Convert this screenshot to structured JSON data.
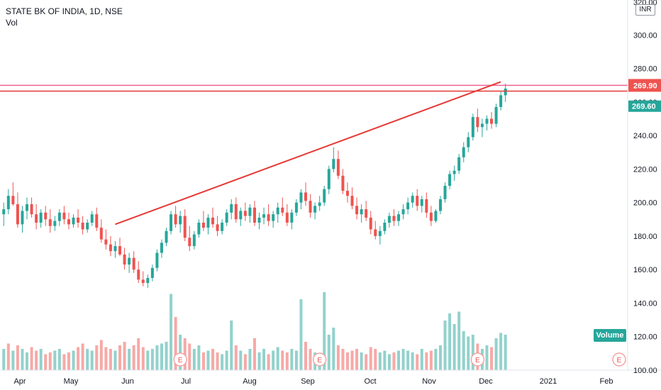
{
  "legend": {
    "title": "STATE BK OF INDIA, 1D, NSE",
    "volume_label": "Vol"
  },
  "currency": "INR",
  "volume_badge": "Volume",
  "top_partial_label": "320.00",
  "earnings_marker": "E",
  "colors": {
    "up": "#26a69a",
    "down": "#ef5350",
    "trendline": "#e53935",
    "level_upper": "#f06292",
    "level_lower": "#e53935"
  },
  "chart_data": {
    "type": "candlestick",
    "title": "STATE BK OF INDIA, 1D, NSE",
    "ylim": [
      100,
      320
    ],
    "y_ticks": [
      100,
      120,
      140,
      160,
      180,
      200,
      220,
      240,
      260,
      280,
      300
    ],
    "x_ticks": [
      "Apr",
      "May",
      "Jun",
      "Jul",
      "Aug",
      "Sep",
      "Oct",
      "Nov",
      "Dec",
      "2021",
      "Feb"
    ],
    "candles": [
      [
        193,
        200,
        186,
        196
      ],
      [
        196,
        208,
        193,
        204
      ],
      [
        204,
        212,
        198,
        199
      ],
      [
        199,
        206,
        185,
        187
      ],
      [
        187,
        198,
        182,
        195
      ],
      [
        195,
        203,
        190,
        199
      ],
      [
        199,
        203,
        191,
        193
      ],
      [
        193,
        199,
        184,
        188
      ],
      [
        188,
        196,
        185,
        194
      ],
      [
        194,
        198,
        186,
        190
      ],
      [
        190,
        196,
        182,
        186
      ],
      [
        186,
        192,
        183,
        189
      ],
      [
        189,
        196,
        186,
        194
      ],
      [
        194,
        198,
        187,
        190
      ],
      [
        190,
        194,
        184,
        187
      ],
      [
        187,
        193,
        185,
        191
      ],
      [
        191,
        196,
        185,
        188
      ],
      [
        188,
        192,
        181,
        184
      ],
      [
        184,
        190,
        182,
        188
      ],
      [
        188,
        195,
        186,
        193
      ],
      [
        193,
        197,
        183,
        185
      ],
      [
        185,
        190,
        176,
        178
      ],
      [
        178,
        184,
        172,
        175
      ],
      [
        175,
        180,
        168,
        171
      ],
      [
        171,
        177,
        167,
        174
      ],
      [
        174,
        179,
        168,
        169
      ],
      [
        169,
        173,
        160,
        163
      ],
      [
        163,
        170,
        158,
        167
      ],
      [
        167,
        171,
        158,
        160
      ],
      [
        160,
        165,
        152,
        154
      ],
      [
        154,
        159,
        150,
        152
      ],
      [
        152,
        157,
        149,
        155
      ],
      [
        155,
        163,
        153,
        161
      ],
      [
        161,
        172,
        159,
        170
      ],
      [
        170,
        178,
        167,
        176
      ],
      [
        176,
        185,
        174,
        183
      ],
      [
        183,
        195,
        181,
        193
      ],
      [
        193,
        198,
        185,
        187
      ],
      [
        187,
        195,
        182,
        192
      ],
      [
        192,
        196,
        177,
        179
      ],
      [
        179,
        186,
        171,
        174
      ],
      [
        174,
        183,
        172,
        181
      ],
      [
        181,
        190,
        179,
        188
      ],
      [
        188,
        195,
        183,
        185
      ],
      [
        185,
        193,
        181,
        191
      ],
      [
        191,
        197,
        185,
        187
      ],
      [
        187,
        192,
        180,
        183
      ],
      [
        183,
        190,
        181,
        188
      ],
      [
        188,
        196,
        186,
        194
      ],
      [
        194,
        202,
        190,
        199
      ],
      [
        199,
        203,
        188,
        190
      ],
      [
        190,
        197,
        186,
        195
      ],
      [
        195,
        200,
        189,
        192
      ],
      [
        192,
        199,
        188,
        197
      ],
      [
        197,
        201,
        186,
        188
      ],
      [
        188,
        194,
        184,
        191
      ],
      [
        191,
        197,
        187,
        193
      ],
      [
        193,
        199,
        186,
        189
      ],
      [
        189,
        195,
        185,
        193
      ],
      [
        193,
        200,
        188,
        197
      ],
      [
        197,
        203,
        192,
        194
      ],
      [
        194,
        199,
        186,
        188
      ],
      [
        188,
        196,
        184,
        194
      ],
      [
        194,
        202,
        192,
        200
      ],
      [
        200,
        208,
        196,
        206
      ],
      [
        206,
        212,
        198,
        201
      ],
      [
        201,
        205,
        191,
        194
      ],
      [
        194,
        200,
        190,
        198
      ],
      [
        198,
        204,
        195,
        200
      ],
      [
        200,
        210,
        198,
        208
      ],
      [
        208,
        222,
        205,
        220
      ],
      [
        220,
        233,
        218,
        226
      ],
      [
        226,
        231,
        214,
        216
      ],
      [
        216,
        220,
        205,
        207
      ],
      [
        207,
        212,
        200,
        204
      ],
      [
        204,
        209,
        196,
        198
      ],
      [
        198,
        203,
        190,
        193
      ],
      [
        193,
        199,
        188,
        196
      ],
      [
        196,
        201,
        189,
        191
      ],
      [
        191,
        195,
        181,
        184
      ],
      [
        184,
        189,
        178,
        180
      ],
      [
        180,
        186,
        175,
        183
      ],
      [
        183,
        190,
        181,
        188
      ],
      [
        188,
        194,
        185,
        192
      ],
      [
        192,
        196,
        186,
        189
      ],
      [
        189,
        195,
        186,
        193
      ],
      [
        193,
        199,
        190,
        196
      ],
      [
        196,
        203,
        193,
        200
      ],
      [
        200,
        206,
        197,
        204
      ],
      [
        204,
        208,
        195,
        198
      ],
      [
        198,
        204,
        194,
        202
      ],
      [
        202,
        206,
        191,
        194
      ],
      [
        194,
        198,
        186,
        189
      ],
      [
        189,
        196,
        188,
        195
      ],
      [
        195,
        204,
        193,
        202
      ],
      [
        202,
        212,
        200,
        210
      ],
      [
        210,
        219,
        208,
        217
      ],
      [
        217,
        222,
        213,
        219
      ],
      [
        219,
        229,
        217,
        227
      ],
      [
        227,
        236,
        224,
        233
      ],
      [
        233,
        242,
        230,
        239
      ],
      [
        239,
        253,
        237,
        251
      ],
      [
        251,
        256,
        242,
        245
      ],
      [
        245,
        250,
        239,
        247
      ],
      [
        247,
        252,
        243,
        250
      ],
      [
        250,
        254,
        244,
        247
      ],
      [
        247,
        259,
        245,
        257
      ],
      [
        257,
        266,
        255,
        264
      ],
      [
        264,
        271,
        260,
        268
      ]
    ],
    "volume_ylim": [
      0,
      60
    ],
    "volumes": [
      [
        12,
        "up"
      ],
      [
        15,
        "down"
      ],
      [
        11,
        "up"
      ],
      [
        14,
        "down"
      ],
      [
        12,
        "up"
      ],
      [
        10,
        "up"
      ],
      [
        13,
        "down"
      ],
      [
        11,
        "down"
      ],
      [
        12,
        "up"
      ],
      [
        9,
        "down"
      ],
      [
        10,
        "down"
      ],
      [
        11,
        "up"
      ],
      [
        12,
        "up"
      ],
      [
        9,
        "down"
      ],
      [
        10,
        "down"
      ],
      [
        11,
        "up"
      ],
      [
        13,
        "down"
      ],
      [
        15,
        "down"
      ],
      [
        12,
        "up"
      ],
      [
        11,
        "up"
      ],
      [
        14,
        "down"
      ],
      [
        17,
        "down"
      ],
      [
        13,
        "down"
      ],
      [
        12,
        "down"
      ],
      [
        11,
        "up"
      ],
      [
        14,
        "down"
      ],
      [
        16,
        "down"
      ],
      [
        12,
        "up"
      ],
      [
        14,
        "down"
      ],
      [
        18,
        "down"
      ],
      [
        13,
        "down"
      ],
      [
        11,
        "up"
      ],
      [
        12,
        "up"
      ],
      [
        14,
        "up"
      ],
      [
        15,
        "up"
      ],
      [
        16,
        "up"
      ],
      [
        43,
        "up"
      ],
      [
        30,
        "down"
      ],
      [
        20,
        "up"
      ],
      [
        18,
        "down"
      ],
      [
        15,
        "down"
      ],
      [
        12,
        "up"
      ],
      [
        14,
        "up"
      ],
      [
        10,
        "down"
      ],
      [
        11,
        "up"
      ],
      [
        12,
        "down"
      ],
      [
        10,
        "down"
      ],
      [
        9,
        "up"
      ],
      [
        11,
        "up"
      ],
      [
        28,
        "up"
      ],
      [
        14,
        "down"
      ],
      [
        11,
        "up"
      ],
      [
        9,
        "down"
      ],
      [
        12,
        "up"
      ],
      [
        18,
        "down"
      ],
      [
        10,
        "up"
      ],
      [
        12,
        "up"
      ],
      [
        9,
        "down"
      ],
      [
        11,
        "up"
      ],
      [
        13,
        "up"
      ],
      [
        11,
        "down"
      ],
      [
        10,
        "down"
      ],
      [
        12,
        "up"
      ],
      [
        11,
        "up"
      ],
      [
        40,
        "up"
      ],
      [
        16,
        "down"
      ],
      [
        12,
        "down"
      ],
      [
        10,
        "up"
      ],
      [
        9,
        "up"
      ],
      [
        44,
        "up"
      ],
      [
        20,
        "up"
      ],
      [
        24,
        "up"
      ],
      [
        14,
        "down"
      ],
      [
        12,
        "down"
      ],
      [
        10,
        "down"
      ],
      [
        11,
        "down"
      ],
      [
        12,
        "down"
      ],
      [
        10,
        "up"
      ],
      [
        9,
        "down"
      ],
      [
        13,
        "down"
      ],
      [
        12,
        "down"
      ],
      [
        10,
        "up"
      ],
      [
        11,
        "up"
      ],
      [
        9,
        "up"
      ],
      [
        10,
        "down"
      ],
      [
        11,
        "up"
      ],
      [
        12,
        "up"
      ],
      [
        11,
        "up"
      ],
      [
        10,
        "up"
      ],
      [
        9,
        "down"
      ],
      [
        12,
        "up"
      ],
      [
        10,
        "down"
      ],
      [
        11,
        "down"
      ],
      [
        12,
        "up"
      ],
      [
        14,
        "up"
      ],
      [
        28,
        "up"
      ],
      [
        32,
        "up"
      ],
      [
        26,
        "up"
      ],
      [
        33,
        "up"
      ],
      [
        22,
        "up"
      ],
      [
        19,
        "up"
      ],
      [
        20,
        "up"
      ],
      [
        15,
        "down"
      ],
      [
        12,
        "up"
      ],
      [
        14,
        "up"
      ],
      [
        13,
        "down"
      ],
      [
        18,
        "up"
      ],
      [
        21,
        "up"
      ],
      [
        20,
        "up"
      ]
    ],
    "last_price": "269.90",
    "second_price": "269.60",
    "levels": [
      {
        "name": "upper",
        "price": 269.9
      },
      {
        "name": "lower",
        "price": 266.5
      }
    ],
    "trendline": {
      "start_index": 24,
      "start_price": 187,
      "end_index": 107,
      "end_price": 272
    },
    "earnings_indices": [
      38,
      68,
      102
    ],
    "y_axis_side": "right",
    "grid": false
  }
}
